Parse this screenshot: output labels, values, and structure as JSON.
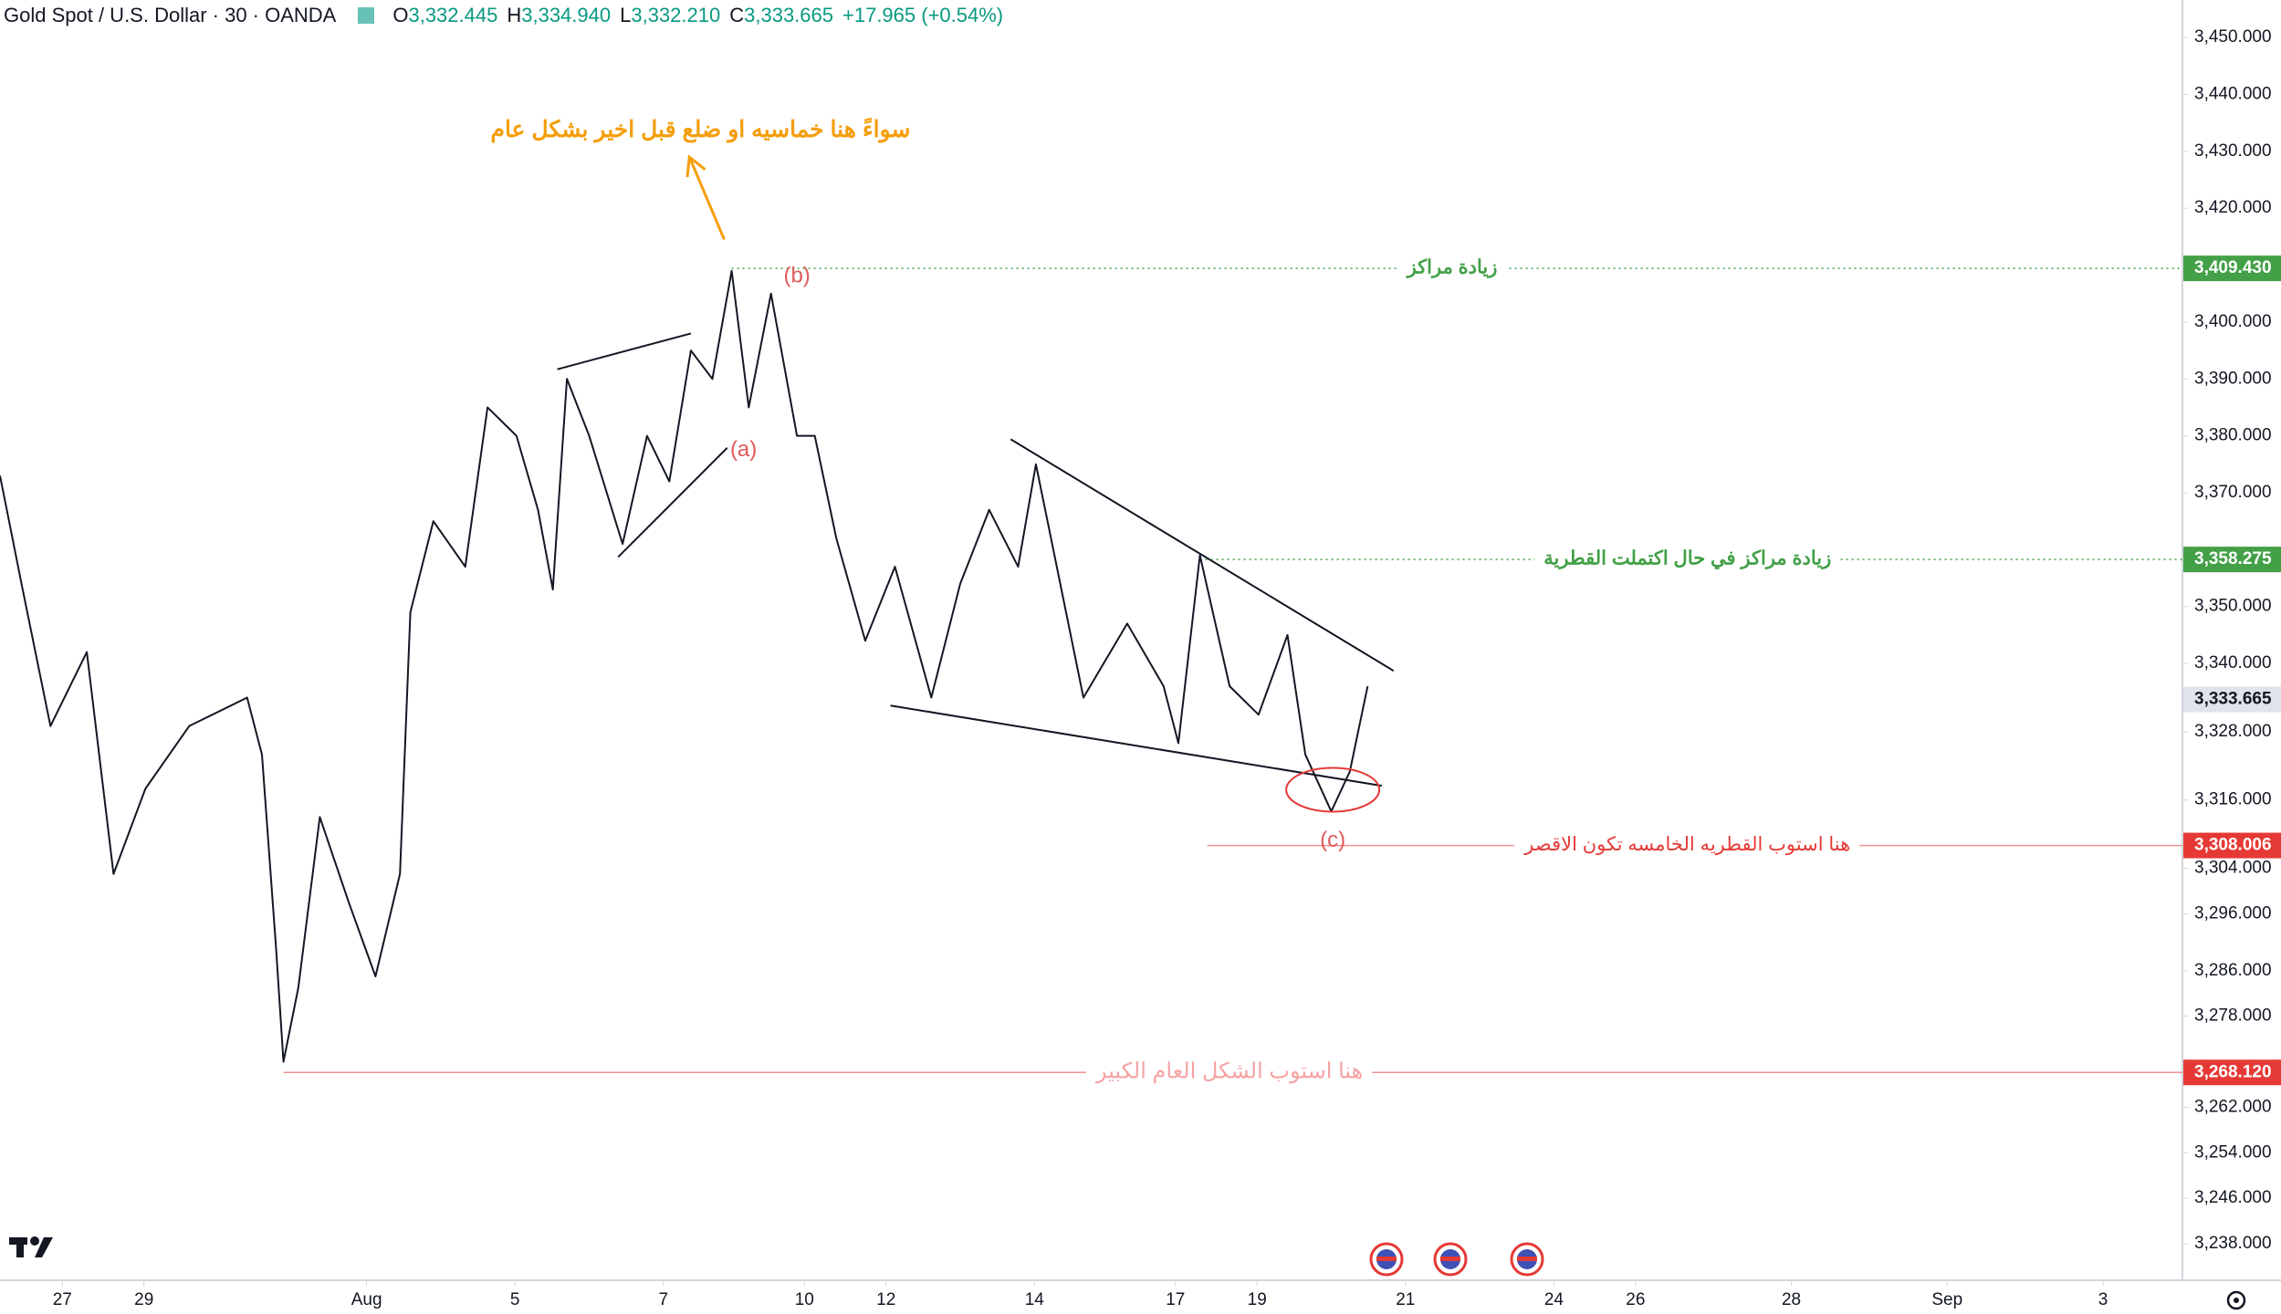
{
  "chart_data": {
    "type": "line",
    "title": "Gold Spot / U.S. Dollar · 30 · OANDA",
    "header": [
      {
        "key": "O",
        "text": "3,332.445"
      },
      {
        "key": "H",
        "text": "3,334.940"
      },
      {
        "key": "L",
        "text": "3,332.210"
      },
      {
        "key": "C",
        "text": "3,333.665"
      }
    ],
    "change": "+17.965 (+0.54%)",
    "color": "#131722",
    "x": [
      -0.84,
      -0.55,
      -0.16,
      0.33,
      0.69,
      1.12,
      1.71,
      2.49,
      2.69,
      2.88,
      2.98,
      3.18,
      3.47,
      3.86,
      4.22,
      4.55,
      4.69,
      5.0,
      5.43,
      5.73,
      6.12,
      6.41,
      6.61,
      6.8,
      7.1,
      7.55,
      7.88,
      8.18,
      8.47,
      8.76,
      9.02,
      9.25,
      9.55,
      9.9,
      10.14,
      10.43,
      10.82,
      11.22,
      11.71,
      12.1,
      12.49,
      12.88,
      13.12,
      13.37,
      13.76,
      14.35,
      14.84,
      15.04,
      15.33,
      15.73,
      16.12,
      16.51,
      16.75,
      17.1,
      17.35,
      17.59
    ],
    "values": [
      3373,
      3354,
      3329,
      3342,
      3303,
      3318,
      3329,
      3334,
      3324,
      3290,
      3270,
      3283,
      3313,
      3298,
      3285,
      3303,
      3349,
      3365,
      3357,
      3385,
      3380,
      3367,
      3353,
      3390,
      3380,
      3361,
      3380,
      3372,
      3395,
      3390,
      3409,
      3385,
      3405,
      3380,
      3380,
      3362,
      3344,
      3357,
      3334,
      3354,
      3367,
      3357,
      3375,
      3359,
      3334,
      3347,
      3336,
      3326,
      3359,
      3336,
      3331,
      3345,
      3324,
      3314,
      3321,
      3336
    ],
    "xlim": [
      -0.84,
      28.57
    ],
    "ylim": [
      3231.6,
      3456.6
    ],
    "xticks": [
      {
        "value": 0,
        "label": "27"
      },
      {
        "value": 1.1,
        "label": "29"
      },
      {
        "value": 4.1,
        "label": "Aug"
      },
      {
        "value": 6.1,
        "label": "5"
      },
      {
        "value": 8.1,
        "label": "7"
      },
      {
        "value": 10,
        "label": "10"
      },
      {
        "value": 11.1,
        "label": "12"
      },
      {
        "value": 13.1,
        "label": "14"
      },
      {
        "value": 15,
        "label": "17"
      },
      {
        "value": 16.1,
        "label": "19"
      },
      {
        "value": 18.1,
        "label": "21"
      },
      {
        "value": 20.1,
        "label": "24"
      },
      {
        "value": 21.2,
        "label": "26"
      },
      {
        "value": 23.3,
        "label": "28"
      },
      {
        "value": 25.4,
        "label": "Sep"
      },
      {
        "value": 27.5,
        "label": "3"
      }
    ],
    "yticks": [
      {
        "value": 3450,
        "label": "3,450.000"
      },
      {
        "value": 3440,
        "label": "3,440.000"
      },
      {
        "value": 3430,
        "label": "3,430.000"
      },
      {
        "value": 3420,
        "label": "3,420.000"
      },
      {
        "value": 3400,
        "label": "3,400.000"
      },
      {
        "value": 3390,
        "label": "3,390.000"
      },
      {
        "value": 3380,
        "label": "3,380.000"
      },
      {
        "value": 3370,
        "label": "3,370.000"
      },
      {
        "value": 3350,
        "label": "3,350.000"
      },
      {
        "value": 3340,
        "label": "3,340.000"
      },
      {
        "value": 3328,
        "label": "3,328.000"
      },
      {
        "value": 3316,
        "label": "3,316.000"
      },
      {
        "value": 3304,
        "label": "3,304.000"
      },
      {
        "value": 3296,
        "label": "3,296.000"
      },
      {
        "value": 3286,
        "label": "3,286.000"
      },
      {
        "value": 3278,
        "label": "3,278.000"
      },
      {
        "value": 3262,
        "label": "3,262.000"
      },
      {
        "value": 3254,
        "label": "3,254.000"
      },
      {
        "value": 3246,
        "label": "3,246.000"
      },
      {
        "value": 3238,
        "label": "3,238.000"
      }
    ],
    "price_lines": [
      {
        "value": 3409.43,
        "label": "3,409.430",
        "color": "#43a047",
        "text": "زيادة مراكز",
        "text_x": 18.73,
        "x_start": 9.02,
        "dotted": true
      },
      {
        "value": 3358.275,
        "label": "3,358.275",
        "color": "#43a047",
        "text": "زيادة مراكز في حال اكتملت القطرية",
        "text_x": 21.9,
        "x_start": 15.33,
        "dotted": true
      },
      {
        "value": 3333.665,
        "label": "3,333.665",
        "color": "#e0e3eb"
      },
      {
        "value": 3308.006,
        "label": "3,308.006",
        "color": "#e53935",
        "text": "هنا استوب القطريه الخامسه تكون الاقصر",
        "text_x": 21.9,
        "x_start": 15.43,
        "dotted": false
      },
      {
        "value": 3268.12,
        "label": "3,268.120",
        "color": "#e53935",
        "text": "هنا استوب الشكل العام الكبير",
        "text_x": 15.73,
        "x_start": 2.98,
        "dotted": false
      }
    ],
    "trendlines": [
      {
        "x": [
          6.67,
          8.47
        ],
        "y": [
          3391.7,
          3398
        ]
      },
      {
        "x": [
          7.49,
          8.96
        ],
        "y": [
          3358.7,
          3377.9
        ]
      },
      {
        "x": [
          12.78,
          17.94
        ],
        "y": [
          3379.4,
          3338.7
        ]
      },
      {
        "x": [
          11.16,
          17.78
        ],
        "y": [
          3332.6,
          3318.5
        ]
      }
    ],
    "wave_labels": [
      {
        "text": "(a)",
        "x": 9.18,
        "y": 3377.4
      },
      {
        "text": "(b)",
        "x": 9.9,
        "y": 3408
      },
      {
        "text": "(c)",
        "x": 17.12,
        "y": 3308.8
      }
    ],
    "annotation": {
      "text": "سواءً هنا خماسيه او ضلع قبل اخير بشكل عام",
      "x": 8.6,
      "y": 3433.6,
      "color": "#f59e0b"
    },
    "arrow": {
      "x": [
        8.92,
        8.45
      ],
      "y": [
        3414.5,
        3429
      ]
    },
    "highlight": {
      "x": 17.12,
      "y": 3317.8
    }
  }
}
